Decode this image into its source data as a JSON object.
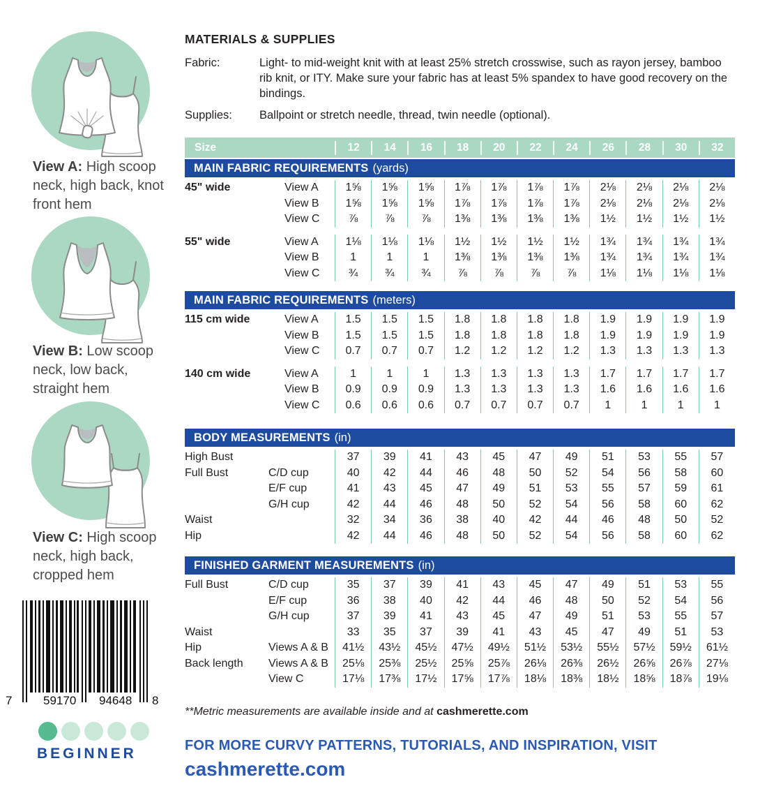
{
  "colors": {
    "mint": "#aad8c2",
    "header_blue": "#1d4b9f",
    "separator_green": "#7fcba6",
    "text_dark": "#262223",
    "cta_blue": "#2b5ab4",
    "beginner_navy": "#1e4b9e",
    "dot_filled": "#56bb8f",
    "dot_empty": "#c9e8d8",
    "illustration_gray": "#8b8b8b"
  },
  "materials": {
    "title": "MATERIALS & SUPPLIES",
    "fabric_label": "Fabric:",
    "fabric_text": "Light- to mid-weight knit with at least 25% stretch crosswise, such as rayon jersey, bamboo rib knit, or ITY. Make sure your fabric has at least 5% spandex to have good recovery on the bindings.",
    "supplies_label": "Supplies:",
    "supplies_text": "Ballpoint or stretch needle, thread, twin needle (optional)."
  },
  "views": [
    {
      "label": "View A:",
      "desc": " High scoop neck, high back, knot front hem"
    },
    {
      "label": "View B:",
      "desc": " Low scoop neck, low back, straight hem"
    },
    {
      "label": "View C:",
      "desc": " High scoop neck, high back, cropped hem"
    }
  ],
  "size_bar": {
    "label": "Size",
    "sizes": [
      "12",
      "14",
      "16",
      "18",
      "20",
      "22",
      "24",
      "26",
      "28",
      "30",
      "32"
    ]
  },
  "yards": {
    "title": "MAIN FABRIC REQUIREMENTS",
    "unit": "(yards)",
    "rows": [
      {
        "label": "45\" wide",
        "sub": "View A",
        "values": [
          "1⅝",
          "1⅝",
          "1⅝",
          "1⅞",
          "1⅞",
          "1⅞",
          "1⅞",
          "2⅛",
          "2⅛",
          "2⅛",
          "2⅛"
        ]
      },
      {
        "label": "",
        "sub": "View B",
        "values": [
          "1⅝",
          "1⅝",
          "1⅝",
          "1⅞",
          "1⅞",
          "1⅞",
          "1⅞",
          "2⅛",
          "2⅛",
          "2⅛",
          "2⅛"
        ]
      },
      {
        "label": "",
        "sub": "View C",
        "values": [
          "⅞",
          "⅞",
          "⅞",
          "1⅜",
          "1⅜",
          "1⅜",
          "1⅜",
          "1½",
          "1½",
          "1½",
          "1½"
        ]
      },
      {
        "label": "55\" wide",
        "sub": "View A",
        "gap": true,
        "values": [
          "1⅛",
          "1⅛",
          "1⅛",
          "1½",
          "1½",
          "1½",
          "1½",
          "1¾",
          "1¾",
          "1¾",
          "1¾"
        ]
      },
      {
        "label": "",
        "sub": "View B",
        "values": [
          "1",
          "1",
          "1",
          "1⅜",
          "1⅜",
          "1⅜",
          "1⅜",
          "1¾",
          "1¾",
          "1¾",
          "1¾"
        ]
      },
      {
        "label": "",
        "sub": "View C",
        "values": [
          "¾",
          "¾",
          "¾",
          "⅞",
          "⅞",
          "⅞",
          "⅞",
          "1⅛",
          "1⅛",
          "1⅛",
          "1⅛"
        ]
      }
    ]
  },
  "meters": {
    "title": "MAIN FABRIC REQUIREMENTS",
    "unit": "(meters)",
    "rows": [
      {
        "label": "115 cm wide",
        "sub": "View A",
        "values": [
          "1.5",
          "1.5",
          "1.5",
          "1.8",
          "1.8",
          "1.8",
          "1.8",
          "1.9",
          "1.9",
          "1.9",
          "1.9"
        ]
      },
      {
        "label": "",
        "sub": "View B",
        "values": [
          "1.5",
          "1.5",
          "1.5",
          "1.8",
          "1.8",
          "1.8",
          "1.8",
          "1.9",
          "1.9",
          "1.9",
          "1.9"
        ]
      },
      {
        "label": "",
        "sub": "View C",
        "values": [
          "0.7",
          "0.7",
          "0.7",
          "1.2",
          "1.2",
          "1.2",
          "1.2",
          "1.3",
          "1.3",
          "1.3",
          "1.3"
        ]
      },
      {
        "label": "140 cm wide",
        "sub": "View A",
        "gap": true,
        "values": [
          "1",
          "1",
          "1",
          "1.3",
          "1.3",
          "1.3",
          "1.3",
          "1.7",
          "1.7",
          "1.7",
          "1.7"
        ]
      },
      {
        "label": "",
        "sub": "View B",
        "values": [
          "0.9",
          "0.9",
          "0.9",
          "1.3",
          "1.3",
          "1.3",
          "1.3",
          "1.6",
          "1.6",
          "1.6",
          "1.6"
        ]
      },
      {
        "label": "",
        "sub": "View C",
        "values": [
          "0.6",
          "0.6",
          "0.6",
          "0.7",
          "0.7",
          "0.7",
          "0.7",
          "1",
          "1",
          "1",
          "1"
        ]
      }
    ]
  },
  "body_measurements": {
    "title": "BODY MEASUREMENTS",
    "unit": "(in)",
    "rows": [
      {
        "label": "High Bust",
        "sub": "",
        "values": [
          "37",
          "39",
          "41",
          "43",
          "45",
          "47",
          "49",
          "51",
          "53",
          "55",
          "57"
        ]
      },
      {
        "label": "Full Bust",
        "sub": "C/D cup",
        "values": [
          "40",
          "42",
          "44",
          "46",
          "48",
          "50",
          "52",
          "54",
          "56",
          "58",
          "60"
        ]
      },
      {
        "label": "",
        "sub": "E/F cup",
        "values": [
          "41",
          "43",
          "45",
          "47",
          "49",
          "51",
          "53",
          "55",
          "57",
          "59",
          "61"
        ]
      },
      {
        "label": "",
        "sub": "G/H cup",
        "values": [
          "42",
          "44",
          "46",
          "48",
          "50",
          "52",
          "54",
          "56",
          "58",
          "60",
          "62"
        ]
      },
      {
        "label": "Waist",
        "sub": "",
        "values": [
          "32",
          "34",
          "36",
          "38",
          "40",
          "42",
          "44",
          "46",
          "48",
          "50",
          "52"
        ]
      },
      {
        "label": "Hip",
        "sub": "",
        "values": [
          "42",
          "44",
          "46",
          "48",
          "50",
          "52",
          "54",
          "56",
          "58",
          "60",
          "62"
        ]
      }
    ]
  },
  "finished_measurements": {
    "title": "FINISHED GARMENT MEASUREMENTS",
    "unit": "(in)",
    "rows": [
      {
        "label": "Full Bust",
        "sub": "C/D cup",
        "values": [
          "35",
          "37",
          "39",
          "41",
          "43",
          "45",
          "47",
          "49",
          "51",
          "53",
          "55"
        ]
      },
      {
        "label": "",
        "sub": "E/F cup",
        "values": [
          "36",
          "38",
          "40",
          "42",
          "44",
          "46",
          "48",
          "50",
          "52",
          "54",
          "56"
        ]
      },
      {
        "label": "",
        "sub": "G/H cup",
        "values": [
          "37",
          "39",
          "41",
          "43",
          "45",
          "47",
          "49",
          "51",
          "53",
          "55",
          "57"
        ]
      },
      {
        "label": "Waist",
        "sub": "",
        "values": [
          "33",
          "35",
          "37",
          "39",
          "41",
          "43",
          "45",
          "47",
          "49",
          "51",
          "53"
        ]
      },
      {
        "label": "Hip",
        "sub": "Views A & B",
        "values": [
          "41½",
          "43½",
          "45½",
          "47½",
          "49½",
          "51½",
          "53½",
          "55½",
          "57½",
          "59½",
          "61½"
        ]
      },
      {
        "label": "Back length",
        "sub": "Views A & B",
        "values": [
          "25⅛",
          "25⅜",
          "25½",
          "25⅝",
          "25⅞",
          "26⅛",
          "26⅜",
          "26½",
          "26⅝",
          "26⅞",
          "27⅛"
        ]
      },
      {
        "label": "",
        "sub": "View C",
        "values": [
          "17⅛",
          "17⅜",
          "17½",
          "17⅝",
          "17⅞",
          "18⅛",
          "18⅜",
          "18½",
          "18⅝",
          "18⅞",
          "19⅛"
        ]
      }
    ]
  },
  "barcode": {
    "digit_left": "7",
    "digit_group1": "59170",
    "digit_group2": "94648",
    "digit_right": "8"
  },
  "difficulty": {
    "dots_total": 5,
    "dots_filled": 1,
    "label": "BEGINNER"
  },
  "footer": {
    "footnote_italic": "**Metric measurements are available inside and at ",
    "footnote_site": "cashmerette.com",
    "cta_line": "FOR MORE CURVY PATTERNS, TUTORIALS, AND INSPIRATION, VISIT",
    "cta_link": "cashmerette.com"
  }
}
